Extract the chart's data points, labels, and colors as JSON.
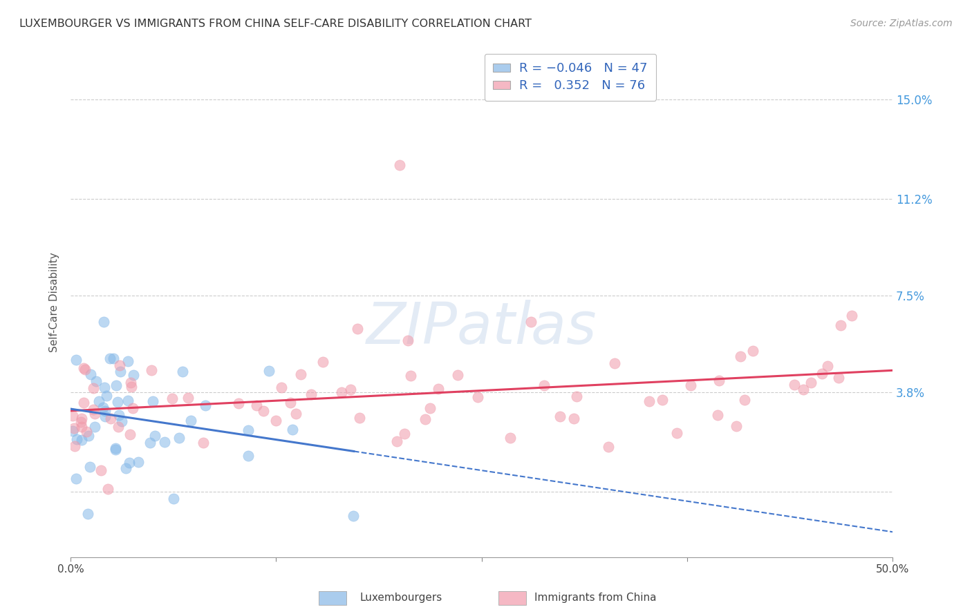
{
  "title": "LUXEMBOURGER VS IMMIGRANTS FROM CHINA SELF-CARE DISABILITY CORRELATION CHART",
  "source": "Source: ZipAtlas.com",
  "ylabel": "Self-Care Disability",
  "y_tick_vals": [
    0.0,
    3.8,
    7.5,
    11.2,
    15.0
  ],
  "y_tick_labels": [
    "",
    "3.8%",
    "7.5%",
    "11.2%",
    "15.0%"
  ],
  "x_range": [
    0.0,
    50.0
  ],
  "y_range": [
    -2.5,
    17.0
  ],
  "blue_color": "#85b8e8",
  "pink_color": "#f09aaa",
  "blue_line_color": "#4477cc",
  "pink_line_color": "#e04060",
  "blue_legend_color": "#aacced",
  "pink_legend_color": "#f5b8c4",
  "legend_text_color": "#3366bb",
  "right_tick_color": "#4499dd",
  "watermark": "ZIPatlas",
  "lux_R": -0.046,
  "lux_N": 47,
  "china_R": 0.352,
  "china_N": 76
}
